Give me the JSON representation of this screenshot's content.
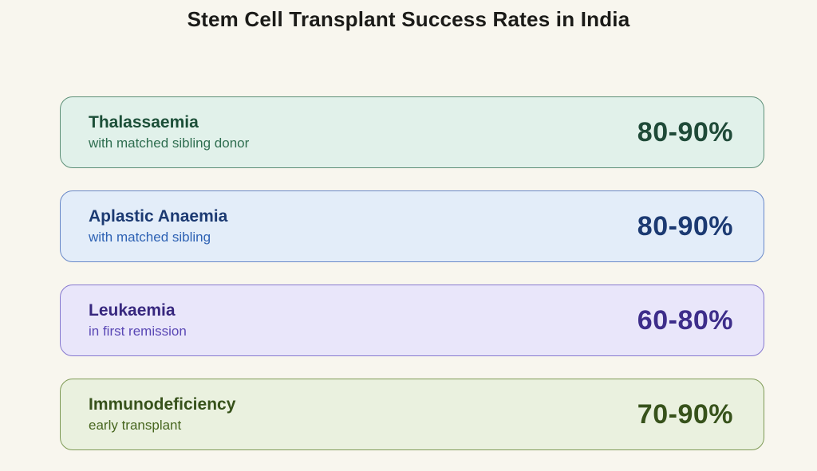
{
  "page": {
    "title": "Stem Cell Transplant Success Rates in India",
    "background_color": "#f8f6ee",
    "title_color": "#1b1b18"
  },
  "cards": [
    {
      "title": "Thalassaemia",
      "subtitle": "with matched sibling donor",
      "rate": "80-90%",
      "colors": {
        "bg": "#e1f1ea",
        "border": "#5e9078",
        "title": "#1c4f38",
        "subtitle": "#2f6e50",
        "rate": "#1f4a38"
      }
    },
    {
      "title": "Aplastic Anaemia",
      "subtitle": "with matched sibling",
      "rate": "80-90%",
      "colors": {
        "bg": "#e3edf9",
        "border": "#6888c8",
        "title": "#1c3a72",
        "subtitle": "#2e62b4",
        "rate": "#1c3a72"
      }
    },
    {
      "title": "Leukaemia",
      "subtitle": "in first remission",
      "rate": "60-80%",
      "colors": {
        "bg": "#e9e6fa",
        "border": "#8678cf",
        "title": "#37277e",
        "subtitle": "#5a48b5",
        "rate": "#3d2d8a"
      }
    },
    {
      "title": "Immunodeficiency",
      "subtitle": "early transplant",
      "rate": "70-90%",
      "colors": {
        "bg": "#eaf1df",
        "border": "#7e9a55",
        "title": "#37521b",
        "subtitle": "#47661f",
        "rate": "#37521b"
      }
    }
  ],
  "chart_data": {
    "type": "table",
    "title": "Stem Cell Transplant Success Rates in India",
    "columns": [
      "condition",
      "detail",
      "success_rate"
    ],
    "rows": [
      {
        "condition": "Thalassaemia",
        "detail": "with matched sibling donor",
        "success_rate": "80-90%",
        "rate_min": 80,
        "rate_max": 90
      },
      {
        "condition": "Aplastic Anaemia",
        "detail": "with matched sibling",
        "success_rate": "80-90%",
        "rate_min": 80,
        "rate_max": 90
      },
      {
        "condition": "Leukaemia",
        "detail": "in first remission",
        "success_rate": "60-80%",
        "rate_min": 60,
        "rate_max": 80
      },
      {
        "condition": "Immunodeficiency",
        "detail": "early transplant",
        "success_rate": "70-90%",
        "rate_min": 70,
        "rate_max": 90
      }
    ],
    "unit": "percent",
    "legend_position": "none",
    "grid": false
  }
}
